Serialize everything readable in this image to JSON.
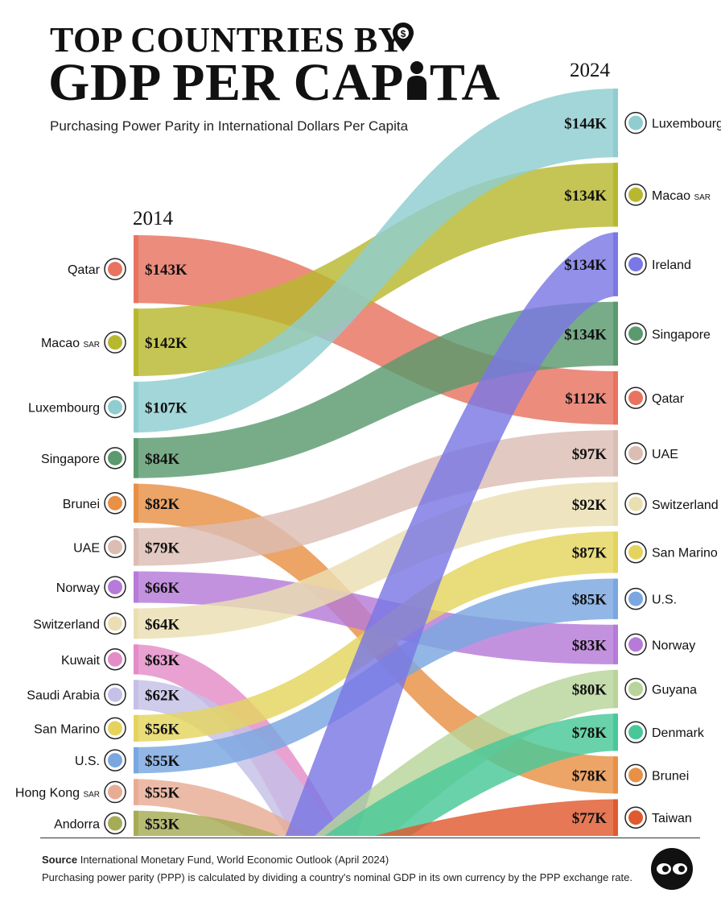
{
  "header": {
    "title_line1": "TOP COUNTRIES BY",
    "title_line2": "GDP PER CAP",
    "title_line2_end": "TA",
    "subtitle": "Purchasing Power Parity in International Dollars Per Capita",
    "icons": [
      "location-pin-icon",
      "person-icon"
    ]
  },
  "footer": {
    "source_label": "Source",
    "source_text": "International Monetary Fund, World Economic Outlook (April 2024)",
    "note": "Purchasing power parity (PPP) is calculated by dividing a country's nominal GDP in its own currency by the PPP exchange rate.",
    "logo_icon": "visual-capitalist-logo-icon"
  },
  "chart_data": {
    "type": "bump",
    "unit": "International $ per capita, thousands (PPP)",
    "left_label": "2014",
    "right_label": "2024",
    "left": [
      {
        "country": "Qatar",
        "value_label": "$143K",
        "value": 143
      },
      {
        "country": "Macao",
        "suffix": "SAR",
        "value_label": "$142K",
        "value": 142
      },
      {
        "country": "Luxembourg",
        "value_label": "$107K",
        "value": 107
      },
      {
        "country": "Singapore",
        "value_label": "$84K",
        "value": 84
      },
      {
        "country": "Brunei",
        "value_label": "$82K",
        "value": 82
      },
      {
        "country": "UAE",
        "value_label": "$79K",
        "value": 79
      },
      {
        "country": "Norway",
        "value_label": "$66K",
        "value": 66
      },
      {
        "country": "Switzerland",
        "value_label": "$64K",
        "value": 64
      },
      {
        "country": "Kuwait",
        "value_label": "$63K",
        "value": 63
      },
      {
        "country": "Saudi Arabia",
        "value_label": "$62K",
        "value": 62
      },
      {
        "country": "San Marino",
        "value_label": "$56K",
        "value": 56
      },
      {
        "country": "U.S.",
        "value_label": "$55K",
        "value": 55
      },
      {
        "country": "Hong Kong",
        "suffix": "SAR",
        "value_label": "$55K",
        "value": 55
      },
      {
        "country": "Andorra",
        "value_label": "$53K",
        "value": 53
      }
    ],
    "right": [
      {
        "country": "Luxembourg",
        "value_label": "$144K",
        "value": 144
      },
      {
        "country": "Macao",
        "suffix": "SAR",
        "value_label": "$134K",
        "value": 134
      },
      {
        "country": "Ireland",
        "value_label": "$134K",
        "value": 134
      },
      {
        "country": "Singapore",
        "value_label": "$134K",
        "value": 134
      },
      {
        "country": "Qatar",
        "value_label": "$112K",
        "value": 112
      },
      {
        "country": "UAE",
        "value_label": "$97K",
        "value": 97
      },
      {
        "country": "Switzerland",
        "value_label": "$92K",
        "value": 92
      },
      {
        "country": "San Marino",
        "value_label": "$87K",
        "value": 87
      },
      {
        "country": "U.S.",
        "value_label": "$85K",
        "value": 85
      },
      {
        "country": "Norway",
        "value_label": "$83K",
        "value": 83
      },
      {
        "country": "Guyana",
        "value_label": "$80K",
        "value": 80
      },
      {
        "country": "Denmark",
        "value_label": "$78K",
        "value": 78
      },
      {
        "country": "Brunei",
        "value_label": "$78K",
        "value": 78
      },
      {
        "country": "Taiwan",
        "value_label": "$77K",
        "value": 77
      }
    ],
    "colors": {
      "Qatar": "#e8735f",
      "Macao": "#b8b830",
      "Luxembourg": "#8fcdd0",
      "Singapore": "#5a9a6e",
      "Brunei": "#e89046",
      "UAE": "#dcbdb3",
      "Norway": "#b67ad8",
      "Switzerland": "#eadfb2",
      "Kuwait": "#e48cc8",
      "Saudi Arabia": "#c4c0e6",
      "San Marino": "#e4d45e",
      "U.S.": "#7aa7e0",
      "Hong Kong": "#e8ac94",
      "Andorra": "#a6ac56",
      "Ireland": "#7a78e4",
      "Guyana": "#b8d49a",
      "Denmark": "#48c898",
      "Taiwan": "#e05a30"
    }
  }
}
